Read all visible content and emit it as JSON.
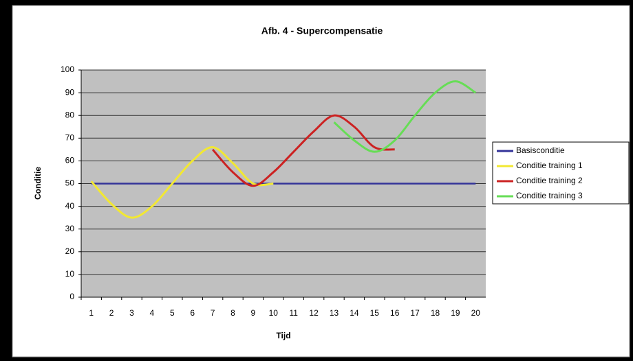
{
  "chart_data": {
    "type": "line",
    "smooth": true,
    "title": "Afb. 4 - Supercompensatie",
    "x_label": "Tijd",
    "y_label": "Conditie",
    "categories": [
      "1",
      "2",
      "3",
      "4",
      "5",
      "6",
      "7",
      "8",
      "9",
      "10",
      "11",
      "12",
      "13",
      "14",
      "15",
      "16",
      "17",
      "18",
      "19",
      "20"
    ],
    "ylim": [
      0,
      100
    ],
    "yticks": [
      0,
      10,
      20,
      30,
      40,
      50,
      60,
      70,
      80,
      90,
      100
    ],
    "grid": true,
    "legend": "right",
    "series": [
      {
        "name": "Basisconditie",
        "color": "#333399",
        "values": [
          50,
          50,
          50,
          50,
          50,
          50,
          50,
          50,
          50,
          50,
          50,
          50,
          50,
          50,
          50,
          50,
          50,
          50,
          50,
          50
        ]
      },
      {
        "name": "Conditie training 1",
        "color": "#f2e832",
        "values": [
          51,
          41,
          35,
          40,
          50,
          60,
          66,
          59,
          50,
          50,
          null,
          null,
          null,
          null,
          null,
          null,
          null,
          null,
          null,
          null
        ]
      },
      {
        "name": "Conditie training 2",
        "color": "#cc2222",
        "values": [
          null,
          null,
          null,
          null,
          null,
          null,
          65,
          55,
          49,
          55,
          64,
          73,
          80,
          75,
          66,
          65,
          null,
          null,
          null,
          null
        ]
      },
      {
        "name": "Conditie training 3",
        "color": "#66dd55",
        "values": [
          null,
          null,
          null,
          null,
          null,
          null,
          null,
          null,
          null,
          null,
          null,
          null,
          77,
          69,
          64,
          69,
          80,
          90,
          95,
          90
        ]
      }
    ]
  }
}
